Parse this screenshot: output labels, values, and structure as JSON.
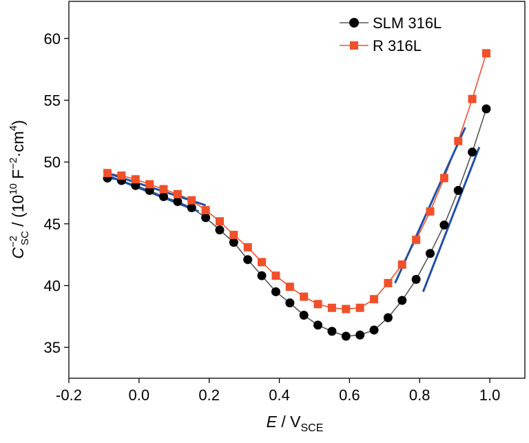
{
  "chart_data": {
    "type": "line",
    "xlabel": {
      "main": "E",
      "sep": " / V",
      "sub": "SCE"
    },
    "ylabel": {
      "main": "C",
      "sup": "−2",
      "sub": "SC",
      "rest": " / (10",
      "exp": "10",
      "unit": " F",
      "unit_sup": "−2",
      "tail": "·cm",
      "tail_sup": "4",
      "close": ")"
    },
    "xlim": [
      -0.2,
      1.1
    ],
    "ylim": [
      32.5,
      63
    ],
    "xticks": [
      -0.2,
      0.0,
      0.2,
      0.4,
      0.6,
      0.8,
      1.0
    ],
    "xtick_labels": [
      "-0.2",
      "0.0",
      "0.2",
      "0.4",
      "0.6",
      "0.8",
      "1.0"
    ],
    "yticks": [
      35,
      40,
      45,
      50,
      55,
      60
    ],
    "ytick_labels": [
      "35",
      "40",
      "45",
      "50",
      "55",
      "60"
    ],
    "grid": false,
    "legend_position": "top-right",
    "series": [
      {
        "name": "SLM 316L",
        "color": "#000000",
        "line_color": "#555555",
        "marker": "circle",
        "x": [
          -0.09,
          -0.05,
          -0.01,
          0.03,
          0.07,
          0.11,
          0.15,
          0.19,
          0.23,
          0.27,
          0.31,
          0.35,
          0.39,
          0.43,
          0.47,
          0.51,
          0.55,
          0.59,
          0.63,
          0.67,
          0.71,
          0.75,
          0.79,
          0.83,
          0.87,
          0.91,
          0.95,
          0.99
        ],
        "y": [
          48.7,
          48.5,
          48.1,
          47.7,
          47.2,
          46.8,
          46.3,
          45.5,
          44.5,
          43.5,
          42.1,
          40.8,
          39.5,
          38.6,
          37.6,
          36.8,
          36.3,
          35.9,
          36.0,
          36.4,
          37.4,
          38.8,
          40.5,
          42.6,
          44.9,
          47.7,
          50.8,
          54.3
        ]
      },
      {
        "name": "R 316L",
        "color": "#f0502a",
        "line_color": "#f0502a",
        "marker": "square",
        "x": [
          -0.09,
          -0.05,
          -0.01,
          0.03,
          0.07,
          0.11,
          0.15,
          0.19,
          0.23,
          0.27,
          0.31,
          0.35,
          0.39,
          0.43,
          0.47,
          0.51,
          0.55,
          0.59,
          0.63,
          0.67,
          0.71,
          0.75,
          0.79,
          0.83,
          0.87,
          0.91,
          0.95,
          0.99
        ],
        "y": [
          49.1,
          48.9,
          48.6,
          48.2,
          47.8,
          47.4,
          46.9,
          46.1,
          45.2,
          44.1,
          43.1,
          41.9,
          40.8,
          39.9,
          39.1,
          38.5,
          38.2,
          38.1,
          38.2,
          38.9,
          40.2,
          41.7,
          43.7,
          46.0,
          48.7,
          51.7,
          55.1,
          58.8
        ]
      }
    ],
    "fit_lines": [
      {
        "color": "#1f4fa8",
        "x": [
          -0.09,
          0.19
        ],
        "y": [
          49.1,
          46.5
        ]
      },
      {
        "color": "#1f4fa8",
        "x": [
          -0.09,
          0.17
        ],
        "y": [
          48.9,
          46.0
        ]
      },
      {
        "color": "#1f4fa8",
        "x": [
          0.73,
          0.93
        ],
        "y": [
          40.2,
          52.8
        ]
      },
      {
        "color": "#1f4fa8",
        "x": [
          0.81,
          0.97
        ],
        "y": [
          39.5,
          51.2
        ]
      }
    ]
  }
}
